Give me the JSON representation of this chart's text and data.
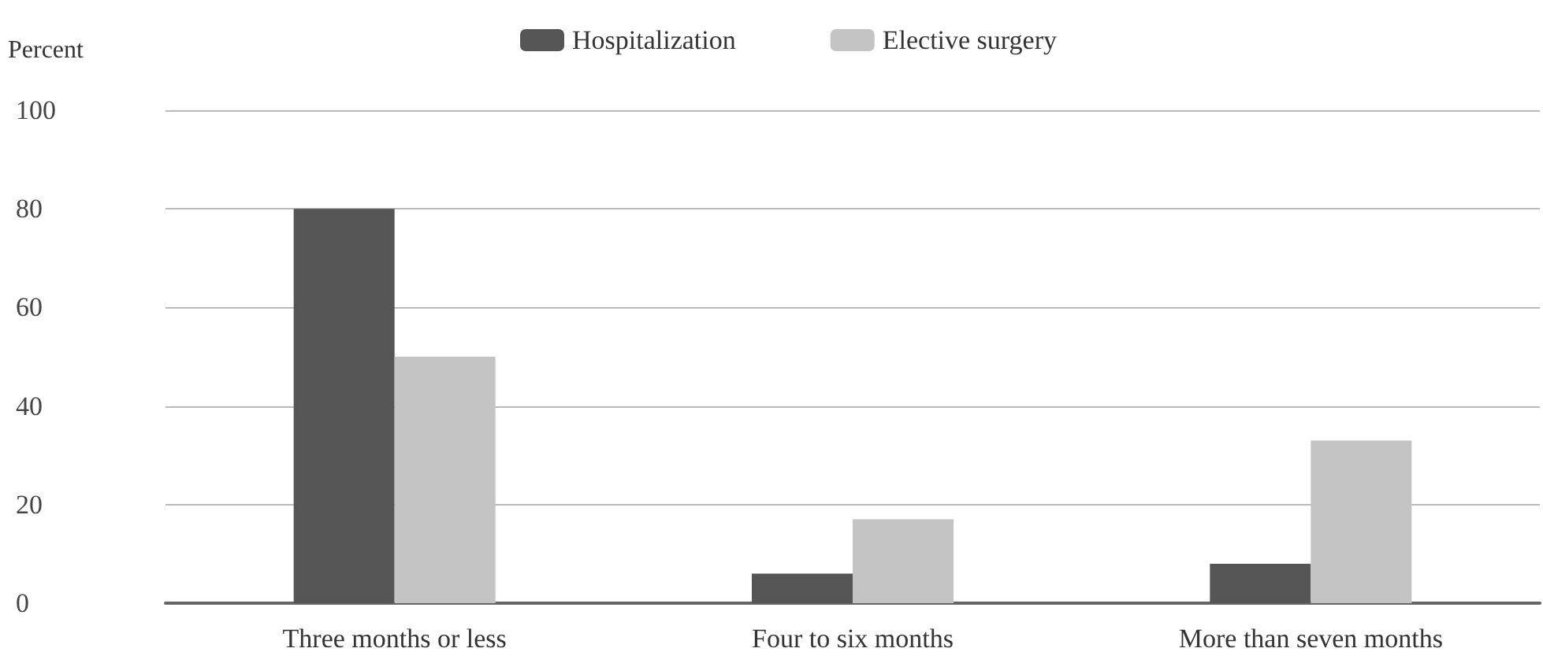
{
  "chart_data": {
    "type": "bar",
    "ylabel": "Percent",
    "categories": [
      "Three months or less",
      "Four to six months",
      "More than seven months"
    ],
    "series": [
      {
        "name": "Hospitalization",
        "color": "#555555",
        "values": [
          80,
          6,
          8
        ]
      },
      {
        "name": "Elective surgery",
        "color": "#c4c4c4",
        "values": [
          50,
          17,
          33
        ]
      }
    ],
    "ylim": [
      0,
      100
    ],
    "yticks": [
      0,
      20,
      40,
      60,
      80,
      100
    ],
    "grid": "y",
    "legend": "top"
  }
}
